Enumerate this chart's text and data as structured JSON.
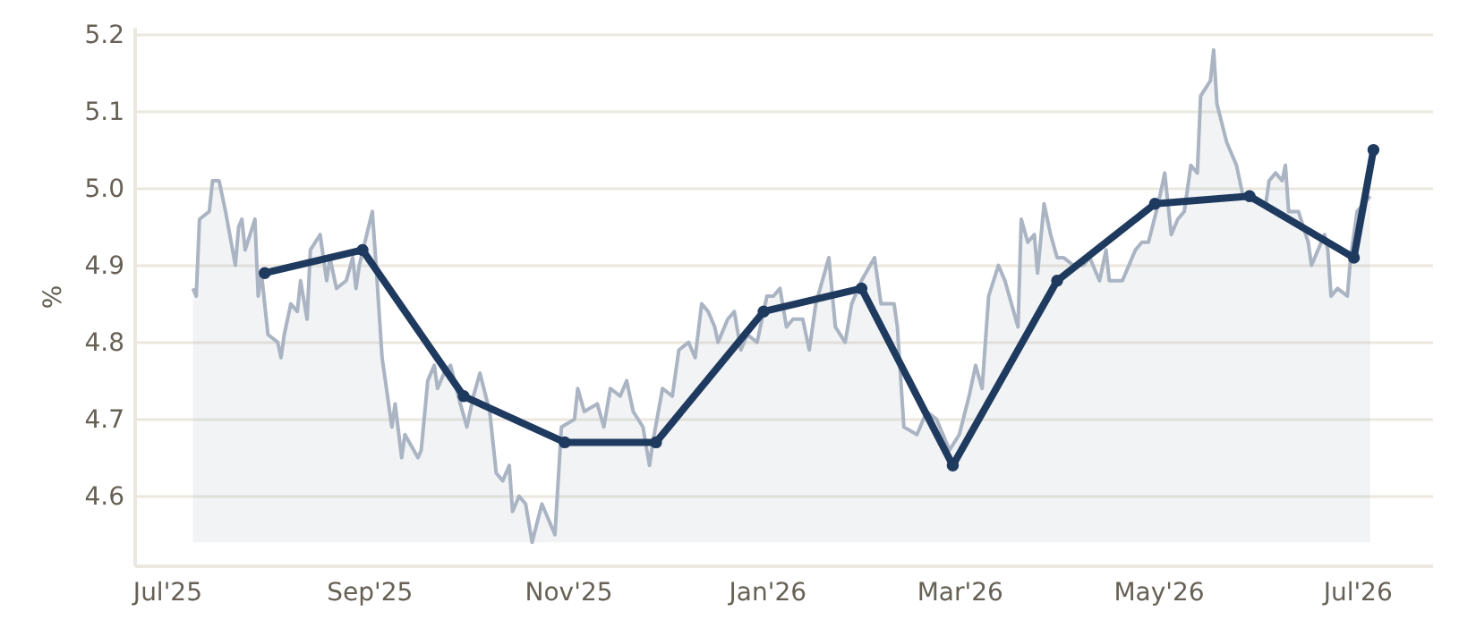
{
  "chart_data": {
    "type": "line",
    "ylabel": "%",
    "xlim": [
      "2025-06-21",
      "2026-07-24"
    ],
    "ylim": [
      4.51,
      5.21
    ],
    "xticks": [
      {
        "value": "2025-07-01",
        "label": "Jul'25"
      },
      {
        "value": "2025-09-01",
        "label": "Sep'25"
      },
      {
        "value": "2025-11-01",
        "label": "Nov'25"
      },
      {
        "value": "2026-01-01",
        "label": "Jan'26"
      },
      {
        "value": "2026-03-01",
        "label": "Mar'26"
      },
      {
        "value": "2026-05-01",
        "label": "May'26"
      },
      {
        "value": "2026-07-01",
        "label": "Jul'26"
      }
    ],
    "yticks": [
      4.6,
      4.7,
      4.8,
      4.9,
      {
        "value": 5,
        "label": "5.0"
      },
      5.1,
      5.2
    ],
    "grid": "y",
    "line_style": "solid",
    "series": [
      {
        "type": "area",
        "color": "#aab4c3",
        "marker": "none",
        "x": [
          "2025-07-09",
          "2025-07-10",
          "2025-07-11",
          "2025-07-14",
          "2025-07-15",
          "2025-07-17",
          "2025-07-19",
          "2025-07-22",
          "2025-07-23",
          "2025-07-24",
          "2025-07-25",
          "2025-07-28",
          "2025-07-29",
          "2025-07-30",
          "2025-08-01",
          "2025-08-04",
          "2025-08-05",
          "2025-08-06",
          "2025-08-08",
          "2025-08-10",
          "2025-08-11",
          "2025-08-13",
          "2025-08-14",
          "2025-08-17",
          "2025-08-19",
          "2025-08-20",
          "2025-08-22",
          "2025-08-25",
          "2025-08-27",
          "2025-08-28",
          "2025-08-29",
          "2025-09-02",
          "2025-09-03",
          "2025-09-05",
          "2025-09-08",
          "2025-09-09",
          "2025-09-11",
          "2025-09-12",
          "2025-09-16",
          "2025-09-17",
          "2025-09-19",
          "2025-09-21",
          "2025-09-22",
          "2025-09-24",
          "2025-09-26",
          "2025-09-29",
          "2025-10-01",
          "2025-10-03",
          "2025-10-05",
          "2025-10-08",
          "2025-10-10",
          "2025-10-12",
          "2025-10-14",
          "2025-10-15",
          "2025-10-17",
          "2025-10-19",
          "2025-10-21",
          "2025-10-24",
          "2025-10-28",
          "2025-10-30",
          "2025-11-03",
          "2025-11-04",
          "2025-11-06",
          "2025-11-10",
          "2025-11-12",
          "2025-11-14",
          "2025-11-17",
          "2025-11-19",
          "2025-11-21",
          "2025-11-24",
          "2025-11-26",
          "2025-11-27",
          "2025-11-30",
          "2025-12-03",
          "2025-12-05",
          "2025-12-08",
          "2025-12-10",
          "2025-12-12",
          "2025-12-14",
          "2025-12-16",
          "2025-12-17",
          "2025-12-20",
          "2025-12-22",
          "2025-12-24",
          "2025-12-26",
          "2025-12-29",
          "2026-01-01",
          "2026-01-03",
          "2026-01-05",
          "2026-01-07",
          "2026-01-09",
          "2026-01-12",
          "2026-01-14",
          "2026-01-16",
          "2026-01-20",
          "2026-01-22",
          "2026-01-25",
          "2026-01-27",
          "2026-01-30",
          "2026-02-03",
          "2026-02-05",
          "2026-02-09",
          "2026-02-10",
          "2026-02-12",
          "2026-02-16",
          "2026-02-19",
          "2026-02-22",
          "2026-02-24",
          "2026-02-26",
          "2026-03-01",
          "2026-03-04",
          "2026-03-06",
          "2026-03-08",
          "2026-03-10",
          "2026-03-13",
          "2026-03-15",
          "2026-03-17",
          "2026-03-19",
          "2026-03-20",
          "2026-03-22",
          "2026-03-24",
          "2026-03-25",
          "2026-03-27",
          "2026-03-29",
          "2026-03-31",
          "2026-04-02",
          "2026-04-05",
          "2026-04-08",
          "2026-04-10",
          "2026-04-12",
          "2026-04-13",
          "2026-04-15",
          "2026-04-16",
          "2026-04-20",
          "2026-04-22",
          "2026-04-24",
          "2026-04-26",
          "2026-04-28",
          "2026-05-01",
          "2026-05-03",
          "2026-05-05",
          "2026-05-07",
          "2026-05-09",
          "2026-05-11",
          "2026-05-13",
          "2026-05-14",
          "2026-05-17",
          "2026-05-18",
          "2026-05-19",
          "2026-05-22",
          "2026-05-25",
          "2026-05-27",
          "2026-06-01",
          "2026-06-03",
          "2026-06-04",
          "2026-06-06",
          "2026-06-08",
          "2026-06-09",
          "2026-06-10",
          "2026-06-13",
          "2026-06-16",
          "2026-06-17",
          "2026-06-19",
          "2026-06-21",
          "2026-06-22",
          "2026-06-23",
          "2026-06-25",
          "2026-06-28",
          "2026-06-29",
          "2026-07-01",
          "2026-07-03",
          "2026-07-05"
        ],
        "values": [
          4.87,
          4.86,
          4.96,
          4.97,
          5.01,
          5.01,
          4.97,
          4.9,
          4.95,
          4.96,
          4.92,
          4.96,
          4.86,
          4.89,
          4.81,
          4.8,
          4.78,
          4.81,
          4.85,
          4.84,
          4.88,
          4.83,
          4.92,
          4.94,
          4.88,
          4.91,
          4.87,
          4.88,
          4.91,
          4.87,
          4.9,
          4.97,
          4.91,
          4.78,
          4.69,
          4.72,
          4.65,
          4.68,
          4.65,
          4.66,
          4.75,
          4.77,
          4.74,
          4.76,
          4.77,
          4.72,
          4.69,
          4.73,
          4.76,
          4.71,
          4.63,
          4.62,
          4.64,
          4.58,
          4.6,
          4.59,
          4.54,
          4.59,
          4.55,
          4.69,
          4.7,
          4.74,
          4.71,
          4.72,
          4.69,
          4.74,
          4.73,
          4.75,
          4.71,
          4.69,
          4.64,
          4.67,
          4.74,
          4.73,
          4.79,
          4.8,
          4.78,
          4.85,
          4.84,
          4.82,
          4.8,
          4.83,
          4.84,
          4.79,
          4.81,
          4.8,
          4.86,
          4.86,
          4.87,
          4.82,
          4.83,
          4.83,
          4.79,
          4.85,
          4.91,
          4.82,
          4.8,
          4.85,
          4.88,
          4.91,
          4.85,
          4.85,
          4.82,
          4.69,
          4.68,
          4.71,
          4.7,
          4.68,
          4.66,
          4.68,
          4.73,
          4.77,
          4.74,
          4.86,
          4.9,
          4.88,
          4.85,
          4.82,
          4.96,
          4.93,
          4.94,
          4.89,
          4.98,
          4.94,
          4.91,
          4.91,
          4.9,
          4.9,
          4.91,
          4.89,
          4.88,
          4.92,
          4.88,
          4.88,
          4.9,
          4.92,
          4.93,
          4.93,
          4.98,
          5.02,
          4.94,
          4.96,
          4.97,
          5.03,
          5.02,
          5.12,
          5.14,
          5.18,
          5.11,
          5.06,
          5.03,
          4.99,
          4.98,
          4.98,
          5.01,
          5.02,
          5.01,
          5.03,
          4.97,
          4.97,
          4.93,
          4.9,
          4.92,
          4.94,
          4.92,
          4.86,
          4.87,
          4.86,
          4.91,
          4.97,
          4.98,
          4.99
        ]
      },
      {
        "type": "line",
        "color": "#1f3a5f",
        "marker": "circle",
        "x": [
          "2025-07-31",
          "2025-08-30",
          "2025-09-30",
          "2025-10-31",
          "2025-11-28",
          "2025-12-31",
          "2026-01-30",
          "2026-02-27",
          "2026-03-31",
          "2026-04-30",
          "2026-05-29",
          "2026-06-30",
          "2026-07-06"
        ],
        "values": [
          4.89,
          4.92,
          4.73,
          4.67,
          4.67,
          4.84,
          4.87,
          4.64,
          4.88,
          4.98,
          4.99,
          4.91,
          5.05
        ]
      }
    ]
  }
}
